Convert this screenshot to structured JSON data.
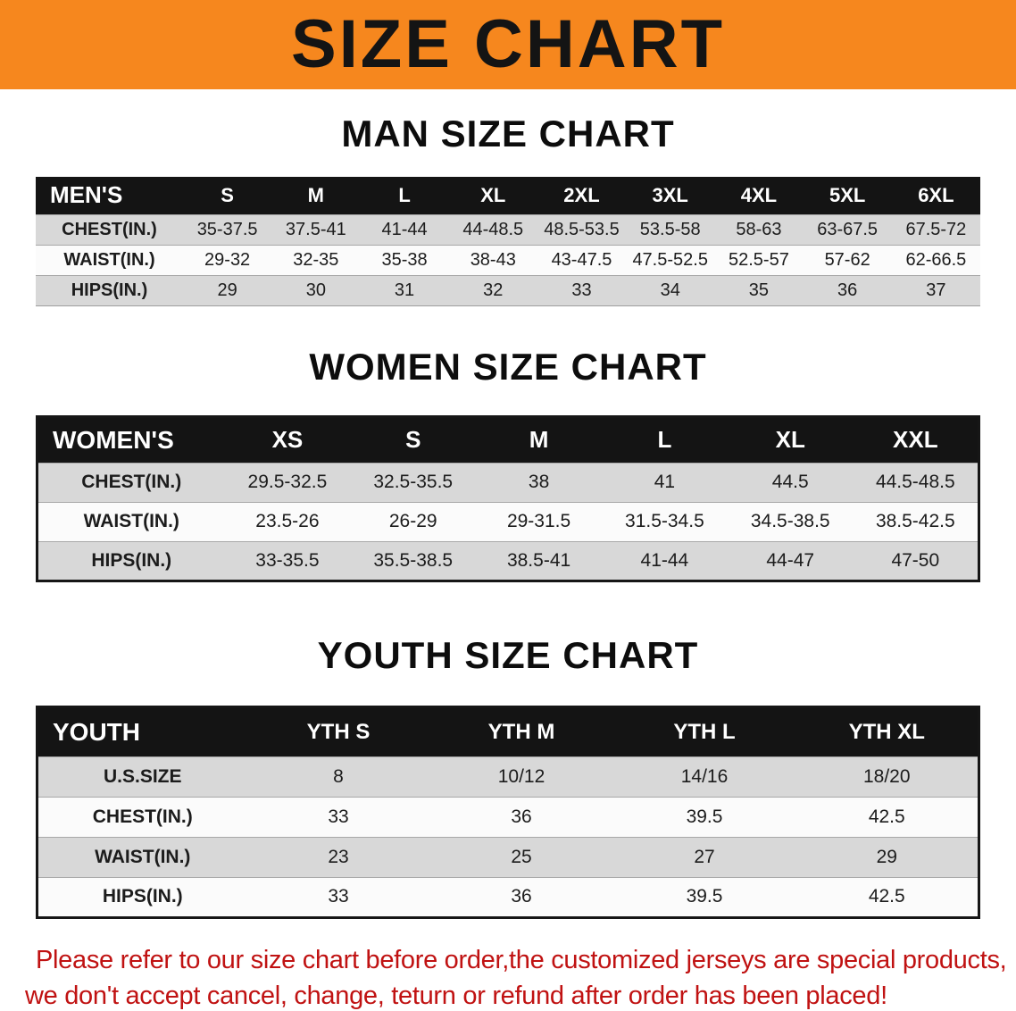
{
  "banner": {
    "title": "SIZE CHART",
    "bg_color": "#f6871e"
  },
  "men": {
    "heading": "MAN SIZE CHART",
    "label": "MEN'S",
    "columns": [
      "S",
      "M",
      "L",
      "XL",
      "2XL",
      "3XL",
      "4XL",
      "5XL",
      "6XL"
    ],
    "rows": [
      {
        "label": "CHEST(IN.)",
        "values": [
          "35-37.5",
          "37.5-41",
          "41-44",
          "44-48.5",
          "48.5-53.5",
          "53.5-58",
          "58-63",
          "63-67.5",
          "67.5-72"
        ]
      },
      {
        "label": "WAIST(IN.)",
        "values": [
          "29-32",
          "32-35",
          "35-38",
          "38-43",
          "43-47.5",
          "47.5-52.5",
          "52.5-57",
          "57-62",
          "62-66.5"
        ]
      },
      {
        "label": "HIPS(IN.)",
        "values": [
          "29",
          "30",
          "31",
          "32",
          "33",
          "34",
          "35",
          "36",
          "37"
        ]
      }
    ]
  },
  "women": {
    "heading": "WOMEN SIZE CHART",
    "label": "WOMEN'S",
    "columns": [
      "XS",
      "S",
      "M",
      "L",
      "XL",
      "XXL"
    ],
    "rows": [
      {
        "label": "CHEST(IN.)",
        "values": [
          "29.5-32.5",
          "32.5-35.5",
          "38",
          "41",
          "44.5",
          "44.5-48.5"
        ]
      },
      {
        "label": "WAIST(IN.)",
        "values": [
          "23.5-26",
          "26-29",
          "29-31.5",
          "31.5-34.5",
          "34.5-38.5",
          "38.5-42.5"
        ]
      },
      {
        "label": "HIPS(IN.)",
        "values": [
          "33-35.5",
          "35.5-38.5",
          "38.5-41",
          "41-44",
          "44-47",
          "47-50"
        ]
      }
    ]
  },
  "youth": {
    "heading": "YOUTH SIZE CHART",
    "label": "YOUTH",
    "columns": [
      "YTH S",
      "YTH M",
      "YTH L",
      "YTH XL"
    ],
    "rows": [
      {
        "label": "U.S.SIZE",
        "values": [
          "8",
          "10/12",
          "14/16",
          "18/20"
        ]
      },
      {
        "label": "CHEST(IN.)",
        "values": [
          "33",
          "36",
          "39.5",
          "42.5"
        ]
      },
      {
        "label": "WAIST(IN.)",
        "values": [
          "23",
          "25",
          "27",
          "29"
        ]
      },
      {
        "label": "HIPS(IN.)",
        "values": [
          "33",
          "36",
          "39.5",
          "42.5"
        ]
      }
    ]
  },
  "disclaimer": {
    "line1": "Please refer to our size chart before order,the customized jerseys are special products,",
    "line2": "we don't accept cancel, change, teturn or refund after order has been placed!",
    "text_color": "#c01212"
  }
}
